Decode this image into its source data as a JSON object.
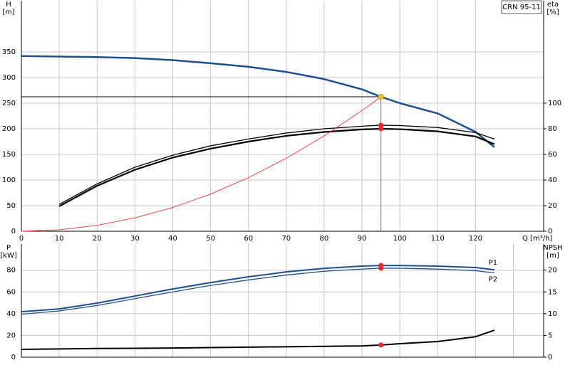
{
  "chart_data": [
    {
      "type": "line",
      "annotation": "CRN 95-11",
      "ylabel": [
        "H",
        "[m]"
      ],
      "y2label": [
        "eta",
        "[%]"
      ],
      "xlabel": "Q [m³/h]",
      "xlim": [
        0,
        138
      ],
      "xticks": [
        0,
        10,
        20,
        30,
        40,
        50,
        60,
        70,
        80,
        90,
        100,
        110,
        120
      ],
      "ylim": [
        0,
        450
      ],
      "yticks": [
        0,
        50,
        100,
        150,
        200,
        250,
        300,
        350
      ],
      "y2lim": [
        0,
        180
      ],
      "y2ticks": [
        0,
        20,
        40,
        60,
        80,
        100
      ],
      "grid": true,
      "marker_x": 95,
      "duty_lines": true,
      "series": [
        {
          "color": "#1f4e8c",
          "width": 2.5,
          "marker_color": "#f5c518",
          "x": [
            0,
            10,
            20,
            30,
            40,
            50,
            60,
            70,
            80,
            90,
            95,
            100,
            110,
            120,
            125
          ],
          "values": [
            342,
            341,
            340,
            338,
            334,
            328,
            321,
            311,
            297,
            277,
            262.5,
            250,
            230,
            194,
            164
          ]
        },
        {
          "color": "#000000",
          "width": 1.3,
          "axis": "y2",
          "marker_color": "#ff2020",
          "x": [
            10,
            20,
            30,
            40,
            50,
            60,
            70,
            80,
            90,
            95,
            100,
            110,
            120,
            125
          ],
          "values": [
            21,
            37,
            50,
            59.4,
            66.7,
            72,
            76.7,
            80,
            82,
            82.8,
            82.5,
            81,
            77,
            72
          ]
        },
        {
          "color": "#000000",
          "width": 2.2,
          "axis": "y2",
          "marker_color": "#ff2020",
          "x": [
            10,
            20,
            30,
            40,
            50,
            60,
            70,
            80,
            90,
            95,
            100,
            110,
            120,
            125
          ],
          "values": [
            19.5,
            35.5,
            48,
            57.5,
            64.5,
            70,
            74.5,
            77.5,
            79.5,
            80,
            79.7,
            78,
            74,
            68
          ]
        },
        {
          "color": "#ff3333",
          "width": 0.9,
          "x": [
            0,
            10,
            20,
            30,
            40,
            50,
            60,
            70,
            80,
            90,
            95
          ],
          "values": [
            0,
            2.9,
            11.6,
            26.2,
            46.5,
            72.7,
            104.7,
            142.5,
            186.1,
            235.6,
            262.5
          ]
        }
      ]
    },
    {
      "type": "line",
      "ylabel": [
        "P",
        "[kW]"
      ],
      "y2label": [
        "NPSH",
        "[m]"
      ],
      "xlim": [
        0,
        138
      ],
      "xticks": [
        0,
        10,
        20,
        30,
        40,
        50,
        60,
        70,
        80,
        90,
        100,
        110,
        120,
        130
      ],
      "xtick_labels": false,
      "ylim": [
        0,
        104
      ],
      "yticks": [
        0,
        20,
        40,
        60,
        80
      ],
      "y2lim": [
        0,
        26
      ],
      "y2ticks": [
        0,
        5,
        10,
        15,
        20
      ],
      "grid": true,
      "marker_x": 95,
      "series": [
        {
          "name": "P1",
          "color": "#1f4e8c",
          "width": 2,
          "marker_color": "#ff2020",
          "x": [
            0,
            10,
            20,
            30,
            40,
            50,
            60,
            70,
            80,
            90,
            95,
            100,
            110,
            120,
            125
          ],
          "values": [
            41.8,
            44.4,
            49.7,
            56.2,
            62.7,
            68.6,
            73.9,
            78.4,
            81.7,
            83.7,
            84.3,
            84.3,
            83.7,
            82.4,
            80.4
          ]
        },
        {
          "name": "P2",
          "color": "#1f4e8c",
          "width": 1.3,
          "marker_color": "#ff2020",
          "x": [
            0,
            10,
            20,
            30,
            40,
            50,
            60,
            70,
            80,
            90,
            95,
            100,
            110,
            120,
            125
          ],
          "values": [
            39.5,
            42.5,
            47.5,
            53.8,
            60,
            66,
            71,
            75.5,
            79,
            81,
            81.8,
            81.8,
            81,
            79.5,
            77.5
          ]
        },
        {
          "color": "#000000",
          "width": 2,
          "axis": "y2",
          "marker_color": "#ff2020",
          "x": [
            0,
            10,
            20,
            30,
            40,
            50,
            60,
            70,
            80,
            90,
            95,
            100,
            110,
            120,
            125
          ],
          "values": [
            1.8,
            1.9,
            2,
            2.05,
            2.1,
            2.2,
            2.3,
            2.4,
            2.5,
            2.6,
            2.8,
            3.1,
            3.6,
            4.7,
            6.2
          ]
        }
      ]
    }
  ]
}
